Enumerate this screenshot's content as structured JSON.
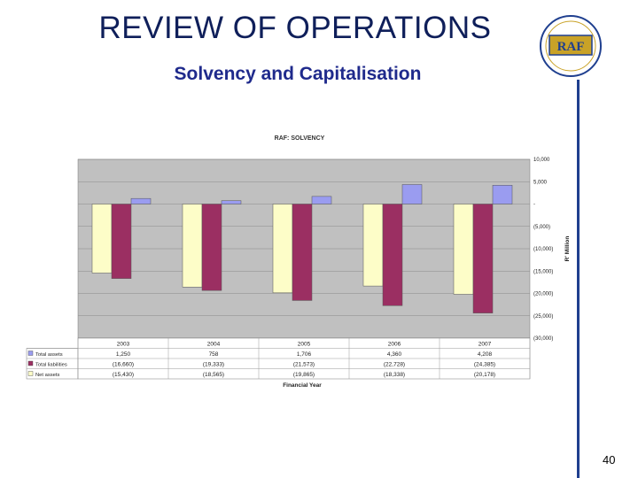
{
  "header": {
    "title": "REVIEW OF OPERATIONS",
    "subtitle": "Solvency and Capitalisation"
  },
  "logo": {
    "text": "RAF"
  },
  "footer": {
    "page_number": "40"
  },
  "colors": {
    "total_assets": "#9a9cf0",
    "total_liabilities": "#9b2f62",
    "net_assets": "#fdfdc8",
    "plot_background": "#c0c0c0",
    "accent": "#1f3f8f"
  },
  "chart_data": {
    "type": "bar",
    "title": "RAF: SOLVENCY",
    "xlabel": "Financial Year",
    "ylabel": "R' Million",
    "categories": [
      "2003",
      "2004",
      "2005",
      "2006",
      "2007"
    ],
    "series": [
      {
        "name": "Total assets",
        "values": [
          1250,
          758,
          1706,
          4360,
          4208
        ],
        "labels": [
          "1,250",
          "758",
          "1,706",
          "4,360",
          "4,208"
        ]
      },
      {
        "name": "Total liabilities",
        "values": [
          -16660,
          -19333,
          -21573,
          -22728,
          -24385
        ],
        "labels": [
          "(16,660)",
          "(19,333)",
          "(21,573)",
          "(22,728)",
          "(24,385)"
        ]
      },
      {
        "name": "Net assets",
        "values": [
          -15430,
          -18565,
          -19865,
          -18338,
          -20178
        ],
        "labels": [
          "(15,430)",
          "(18,565)",
          "(19,865)",
          "(18,338)",
          "(20,178)"
        ]
      }
    ],
    "ylim": [
      -30000,
      10000
    ],
    "yticks": [
      10000,
      5000,
      0,
      -5000,
      -10000,
      -15000,
      -20000,
      -25000,
      -30000
    ],
    "ytick_labels": [
      "10,000",
      "5,000",
      "-",
      "(5,000)",
      "(10,000)",
      "(15,000)",
      "(20,000)",
      "(25,000)",
      "(30,000)"
    ],
    "y_axis_side": "right",
    "grid": true,
    "legend": "data-table"
  }
}
